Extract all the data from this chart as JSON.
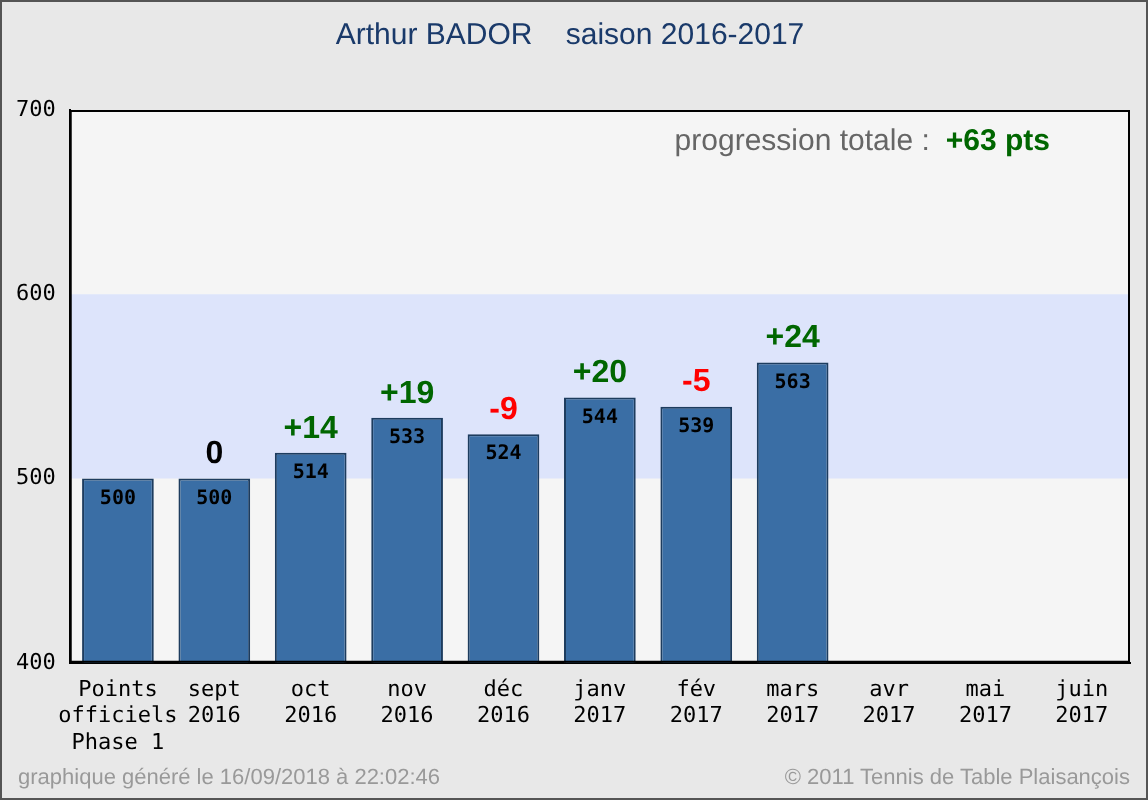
{
  "chart_data": {
    "type": "bar",
    "title": "Arthur BADOR    saison 2016-2017",
    "categories": [
      "Points\nofficiels\nPhase 1",
      "sept\n2016",
      "oct\n2016",
      "nov\n2016",
      "déc\n2016",
      "janv\n2017",
      "fév\n2017",
      "mars\n2017",
      "avr\n2017",
      "mai\n2017",
      "juin\n2017"
    ],
    "values": [
      500,
      500,
      514,
      533,
      524,
      544,
      539,
      563,
      null,
      null,
      null
    ],
    "color": "#3a6ea5",
    "data_labels": true,
    "ylim": [
      400,
      700
    ],
    "yticks": [
      400,
      500,
      600,
      700
    ],
    "grid": false,
    "legend": false,
    "bands": [
      {
        "axis": "y",
        "from": 500,
        "to": 600,
        "color": "#dde4fb"
      }
    ],
    "annotations": [
      "progression totale :",
      "+63 pts",
      "graphique généré le 16/09/2018 à 22:02:46",
      "© 2011 Tennis de Table Plaisançois",
      {
        "text": "0",
        "x": "sept\n2016",
        "y": 500
      },
      {
        "text": "+14",
        "x": "oct\n2016",
        "y": 514
      },
      {
        "text": "+19",
        "x": "nov\n2016",
        "y": 533
      },
      {
        "text": "-9",
        "x": "déc\n2016",
        "y": 524
      },
      {
        "text": "+20",
        "x": "janv\n2017",
        "y": 544
      },
      {
        "text": "-5",
        "x": "fév\n2017",
        "y": 539
      },
      {
        "text": "+24",
        "x": "mars\n2017",
        "y": 563
      }
    ]
  }
}
